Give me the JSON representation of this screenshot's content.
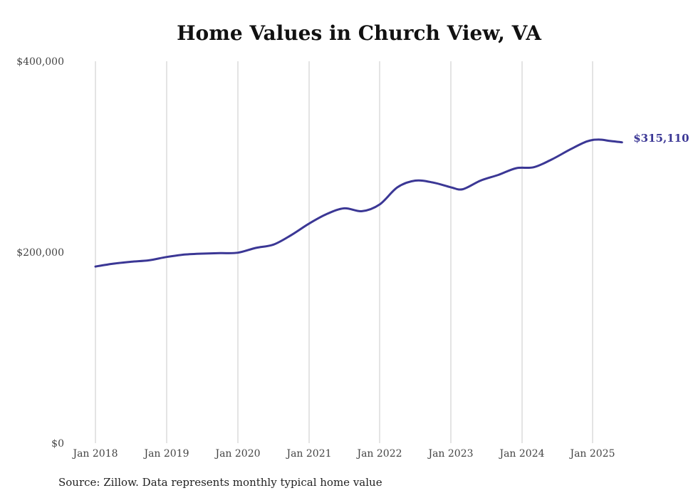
{
  "title": "Home Values in Church View, VA",
  "source": "Source: Zillow. Data represents monthly typical home value",
  "colors": {
    "line": "#3b3795",
    "grid": "#c8c8c8",
    "text": "#444444"
  },
  "chart_data": {
    "type": "line",
    "title": "Home Values in Church View, VA",
    "xlabel": "",
    "ylabel": "",
    "ylim": [
      0,
      400000
    ],
    "y_ticks": [
      0,
      200000,
      400000
    ],
    "y_tick_labels": [
      "$0",
      "$200,000",
      "$400,000"
    ],
    "x_ticks": [
      "2018-01",
      "2019-01",
      "2020-01",
      "2021-01",
      "2022-01",
      "2023-01",
      "2024-01",
      "2025-01"
    ],
    "x_tick_labels": [
      "Jan 2018",
      "Jan 2019",
      "Jan 2020",
      "Jan 2021",
      "Jan 2022",
      "Jan 2023",
      "Jan 2024",
      "Jan 2025"
    ],
    "grid": "vertical",
    "end_label": "$315,110",
    "series": [
      {
        "x": [
          "2018-01",
          "2018-04",
          "2018-07",
          "2018-10",
          "2019-01",
          "2019-04",
          "2019-07",
          "2019-10",
          "2020-01",
          "2020-04",
          "2020-07",
          "2020-10",
          "2021-01",
          "2021-04",
          "2021-07",
          "2021-10",
          "2022-01",
          "2022-04",
          "2022-07",
          "2022-10",
          "2023-01",
          "2023-03",
          "2023-06",
          "2023-09",
          "2023-12",
          "2024-03",
          "2024-06",
          "2024-09",
          "2024-12",
          "2025-02",
          "2025-04",
          "2025-06"
        ],
        "values": [
          185000,
          188000,
          190000,
          191500,
          195000,
          197500,
          198500,
          199000,
          199500,
          204500,
          208000,
          218000,
          230000,
          240000,
          246000,
          243000,
          250000,
          268000,
          275000,
          273000,
          268000,
          266000,
          275000,
          281000,
          288000,
          289000,
          297000,
          307000,
          316000,
          318000,
          316500,
          315110
        ]
      }
    ]
  }
}
